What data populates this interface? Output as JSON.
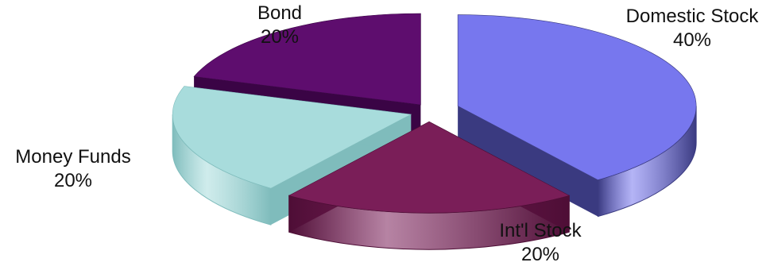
{
  "chart_data": {
    "type": "pie",
    "title": "",
    "style": "3d-exploded",
    "legend": "none",
    "slices": [
      {
        "name": "Domestic Stock",
        "value": 40,
        "label": "40%",
        "color": "#7777ee",
        "side_color": "#3a3a80"
      },
      {
        "name": "Int'l Stock",
        "value": 20,
        "label": "20%",
        "color": "#7a1e58",
        "side_color": "#4e0e36"
      },
      {
        "name": "Money Funds",
        "value": 20,
        "label": "20%",
        "color": "#a8dcdc",
        "side_color": "#7fbcbc"
      },
      {
        "name": "Bond",
        "value": 20,
        "label": "20%",
        "color": "#5e0d6e",
        "side_color": "#3a0445"
      }
    ]
  }
}
